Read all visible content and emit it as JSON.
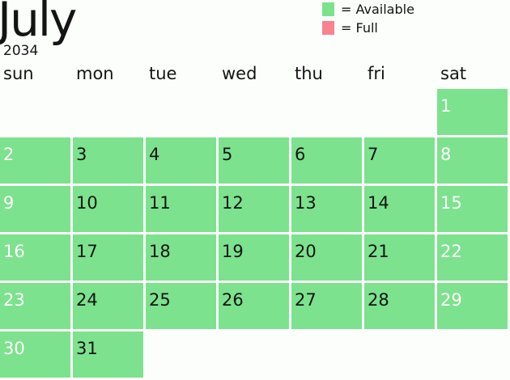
{
  "header": {
    "month": "July",
    "year": "2034"
  },
  "legend": [
    {
      "label": "= Available",
      "color": "#7ce28d"
    },
    {
      "label": "= Full",
      "color": "#f7838e"
    }
  ],
  "weekdays": [
    "sun",
    "mon",
    "tue",
    "wed",
    "thu",
    "fri",
    "sat"
  ],
  "calendar": {
    "first_weekday_index": 6,
    "days": [
      {
        "day": "1",
        "status": "available"
      },
      {
        "day": "2",
        "status": "available"
      },
      {
        "day": "3",
        "status": "available"
      },
      {
        "day": "4",
        "status": "available"
      },
      {
        "day": "5",
        "status": "available"
      },
      {
        "day": "6",
        "status": "available"
      },
      {
        "day": "7",
        "status": "available"
      },
      {
        "day": "8",
        "status": "available"
      },
      {
        "day": "9",
        "status": "available"
      },
      {
        "day": "10",
        "status": "available"
      },
      {
        "day": "11",
        "status": "available"
      },
      {
        "day": "12",
        "status": "available"
      },
      {
        "day": "13",
        "status": "available"
      },
      {
        "day": "14",
        "status": "available"
      },
      {
        "day": "15",
        "status": "available"
      },
      {
        "day": "16",
        "status": "available"
      },
      {
        "day": "17",
        "status": "available"
      },
      {
        "day": "18",
        "status": "available"
      },
      {
        "day": "19",
        "status": "available"
      },
      {
        "day": "20",
        "status": "available"
      },
      {
        "day": "21",
        "status": "available"
      },
      {
        "day": "22",
        "status": "available"
      },
      {
        "day": "23",
        "status": "available"
      },
      {
        "day": "24",
        "status": "available"
      },
      {
        "day": "25",
        "status": "available"
      },
      {
        "day": "26",
        "status": "available"
      },
      {
        "day": "27",
        "status": "available"
      },
      {
        "day": "28",
        "status": "available"
      },
      {
        "day": "29",
        "status": "available"
      },
      {
        "day": "30",
        "status": "available"
      },
      {
        "day": "31",
        "status": "available"
      }
    ]
  }
}
